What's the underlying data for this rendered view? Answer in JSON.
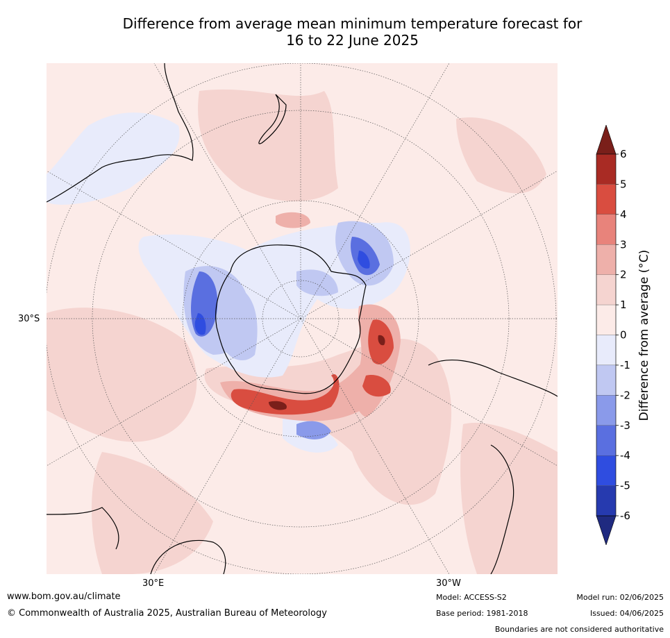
{
  "title": {
    "line1": "Difference from average mean minimum temperature forecast for",
    "line2": "16 to 22 June 2025"
  },
  "map": {
    "projection": "south polar stereographic",
    "lat_label": "30°S",
    "lon_labels": [
      "30°E",
      "30°W"
    ],
    "colors": {
      "ocean_neutral_pos": "#fcebe8",
      "ocean_warm1": "#f5d2cd",
      "land_line": "#000000"
    }
  },
  "colorbar": {
    "label": "Difference from average (°C)",
    "ticks": [
      "6",
      "5",
      "4",
      "3",
      "2",
      "1",
      "0",
      "-1",
      "-2",
      "-3",
      "-4",
      "-5",
      "-6"
    ],
    "colors_top_to_bottom": [
      "#7a1f1a",
      "#a92b24",
      "#d94d40",
      "#e8837b",
      "#eeb0aa",
      "#f5d4d0",
      "#fcebe8",
      "#e8ebfb",
      "#c0c8f2",
      "#8a9aea",
      "#5a6fe0",
      "#2f4de0",
      "#263aaf",
      "#1f2a80"
    ]
  },
  "footer": {
    "website": "www.bom.gov.au/climate",
    "copyright": "© Commonwealth of Australia 2025, Australian Bureau of Meteorology",
    "model": "Model: ACCESS-S2",
    "base_period": "Base period: 1981-2018",
    "model_run": "Model run: 02/06/2025",
    "issued": "Issued: 04/06/2025",
    "disclaimer": "Boundaries are not considered authoritative"
  }
}
